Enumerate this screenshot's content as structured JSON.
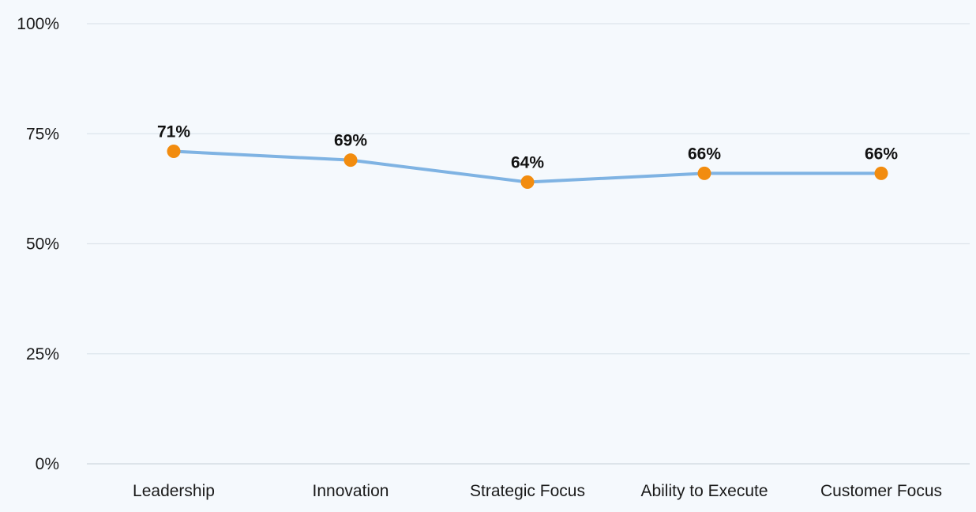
{
  "chart_data": {
    "type": "line",
    "title": "",
    "xlabel": "",
    "ylabel": "",
    "categories": [
      "Leadership",
      "Innovation",
      "Strategic Focus",
      "Ability to Execute",
      "Customer Focus"
    ],
    "series": [
      {
        "values": [
          71,
          69,
          64,
          66,
          66
        ],
        "data_labels": [
          "71%",
          "69%",
          "64%",
          "66%",
          "66%"
        ]
      }
    ],
    "ylim": [
      0,
      100
    ],
    "y_ticks": [
      {
        "value": 0,
        "label": "0%"
      },
      {
        "value": 25,
        "label": "25%"
      },
      {
        "value": 50,
        "label": "50%"
      },
      {
        "value": 75,
        "label": "75%"
      },
      {
        "value": 100,
        "label": "100%"
      }
    ],
    "grid": true,
    "legend": "none",
    "colors": {
      "background": "#f5f9fd",
      "line": "#7fb3e3",
      "marker": "#f28c0f",
      "grid": "#dde5ec",
      "axis": "#cfd8e0"
    }
  }
}
